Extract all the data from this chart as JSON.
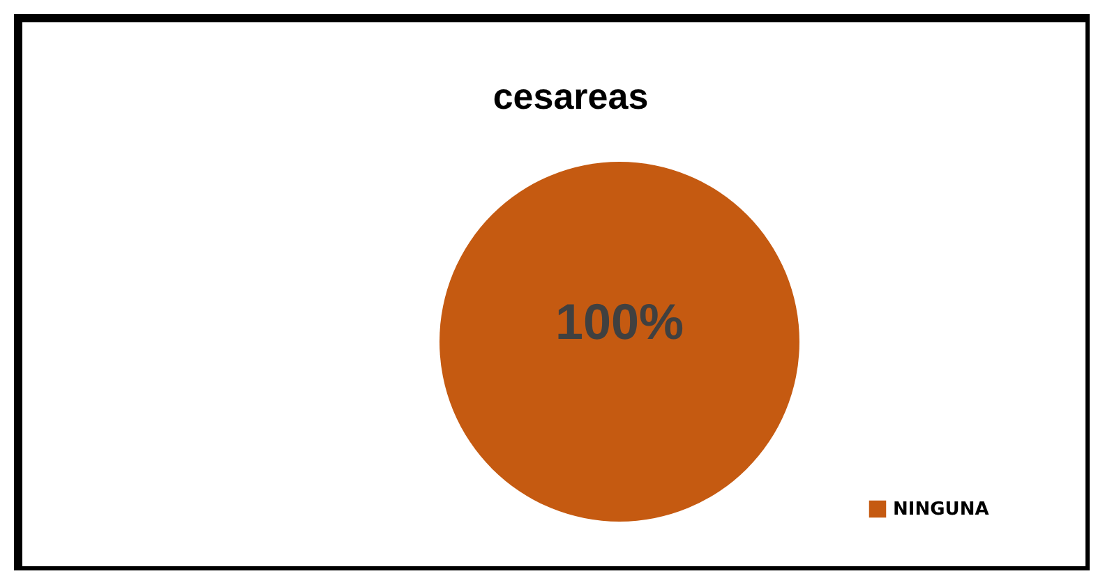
{
  "chart_data": {
    "type": "pie",
    "title": "cesareas",
    "categories": [
      "NINGUNA"
    ],
    "values": [
      100
    ],
    "colors": [
      "#c55a11"
    ],
    "value_labels": [
      "100%"
    ],
    "legend": "bottom right"
  }
}
